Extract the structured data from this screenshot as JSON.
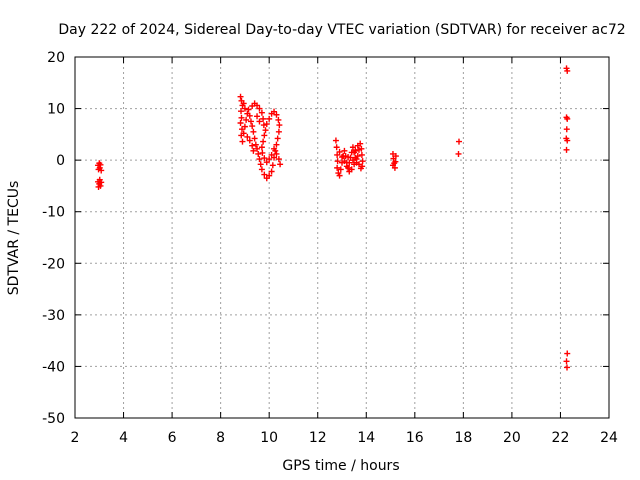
{
  "chart_data": {
    "type": "scatter",
    "title": "Day 222 of 2024, Sidereal Day-to-day VTEC variation (SDTVAR) for receiver ac72",
    "xlabel": "GPS time / hours",
    "ylabel": "SDTVAR / TECUs",
    "xlim": [
      2,
      24
    ],
    "ylim": [
      -50,
      20
    ],
    "xticks": [
      2,
      4,
      6,
      8,
      10,
      12,
      14,
      16,
      18,
      20,
      22,
      24
    ],
    "yticks": [
      -50,
      -40,
      -30,
      -20,
      -10,
      0,
      10,
      20
    ],
    "grid": true,
    "marker": "+",
    "series": [
      {
        "name": "ac72",
        "color": "#ff0000",
        "points": [
          [
            2.95,
            -1.0
          ],
          [
            2.97,
            -1.8
          ],
          [
            3.0,
            -0.6
          ],
          [
            3.02,
            -1.5
          ],
          [
            3.05,
            -0.9
          ],
          [
            3.08,
            -2.0
          ],
          [
            2.95,
            -4.2
          ],
          [
            2.97,
            -5.2
          ],
          [
            3.0,
            -4.6
          ],
          [
            3.02,
            -3.8
          ],
          [
            3.05,
            -5.0
          ],
          [
            3.08,
            -4.3
          ],
          [
            8.82,
            12.3
          ],
          [
            8.86,
            11.5
          ],
          [
            8.9,
            10.6
          ],
          [
            8.84,
            9.5
          ],
          [
            8.86,
            8.2
          ],
          [
            8.82,
            7.2
          ],
          [
            8.88,
            6.0
          ],
          [
            8.85,
            4.8
          ],
          [
            8.9,
            3.6
          ],
          [
            8.95,
            5.2
          ],
          [
            9.0,
            6.5
          ],
          [
            9.05,
            7.8
          ],
          [
            9.1,
            9.0
          ],
          [
            9.15,
            9.8
          ],
          [
            9.2,
            8.6
          ],
          [
            9.25,
            7.5
          ],
          [
            9.3,
            6.6
          ],
          [
            9.35,
            5.5
          ],
          [
            9.4,
            4.2
          ],
          [
            9.45,
            3.0
          ],
          [
            9.5,
            2.2
          ],
          [
            9.55,
            1.2
          ],
          [
            9.6,
            0.2
          ],
          [
            9.65,
            -0.8
          ],
          [
            9.7,
            -1.8
          ],
          [
            9.8,
            -2.8
          ],
          [
            9.9,
            -3.5
          ],
          [
            10.0,
            -3.0
          ],
          [
            10.1,
            -2.2
          ],
          [
            10.15,
            -1.0
          ],
          [
            10.2,
            0.5
          ],
          [
            10.25,
            1.8
          ],
          [
            10.3,
            3.0
          ],
          [
            10.35,
            4.2
          ],
          [
            10.4,
            5.5
          ],
          [
            10.42,
            6.8
          ],
          [
            10.38,
            7.8
          ],
          [
            10.3,
            8.8
          ],
          [
            10.2,
            9.4
          ],
          [
            10.1,
            9.0
          ],
          [
            10.0,
            8.0
          ],
          [
            9.9,
            7.0
          ],
          [
            9.85,
            5.8
          ],
          [
            9.8,
            4.8
          ],
          [
            9.75,
            3.6
          ],
          [
            9.7,
            2.5
          ],
          [
            9.72,
            1.4
          ],
          [
            9.8,
            0.4
          ],
          [
            9.9,
            -0.4
          ],
          [
            10.0,
            0.2
          ],
          [
            10.1,
            1.0
          ],
          [
            10.2,
            2.2
          ],
          [
            10.3,
            1.2
          ],
          [
            10.4,
            0.2
          ],
          [
            10.45,
            -0.8
          ],
          [
            9.3,
            10.5
          ],
          [
            9.4,
            11.0
          ],
          [
            9.5,
            10.6
          ],
          [
            9.6,
            10.0
          ],
          [
            9.7,
            9.2
          ],
          [
            9.75,
            8.0
          ],
          [
            9.78,
            6.8
          ],
          [
            9.6,
            7.5
          ],
          [
            9.5,
            8.5
          ],
          [
            9.0,
            10.0
          ],
          [
            8.95,
            11.0
          ],
          [
            9.1,
            4.5
          ],
          [
            9.2,
            3.8
          ],
          [
            9.3,
            2.8
          ],
          [
            9.35,
            1.8
          ],
          [
            12.75,
            3.8
          ],
          [
            12.78,
            2.5
          ],
          [
            12.8,
            1.0
          ],
          [
            12.82,
            -0.2
          ],
          [
            12.8,
            -1.5
          ],
          [
            12.85,
            -2.5
          ],
          [
            12.9,
            -3.0
          ],
          [
            12.95,
            -1.8
          ],
          [
            13.0,
            -0.5
          ],
          [
            13.05,
            0.8
          ],
          [
            13.1,
            1.8
          ],
          [
            13.15,
            0.8
          ],
          [
            13.2,
            -0.5
          ],
          [
            13.25,
            -1.5
          ],
          [
            13.3,
            -0.5
          ],
          [
            13.35,
            0.5
          ],
          [
            13.4,
            1.5
          ],
          [
            13.45,
            2.5
          ],
          [
            13.5,
            1.5
          ],
          [
            13.55,
            0.5
          ],
          [
            13.6,
            -0.5
          ],
          [
            13.65,
            0.8
          ],
          [
            13.7,
            2.0
          ],
          [
            13.75,
            3.2
          ],
          [
            13.8,
            2.2
          ],
          [
            13.82,
            1.0
          ],
          [
            13.85,
            -0.2
          ],
          [
            13.83,
            -1.2
          ],
          [
            13.78,
            -1.6
          ],
          [
            13.7,
            -0.8
          ],
          [
            13.6,
            0.2
          ],
          [
            13.5,
            -0.8
          ],
          [
            13.4,
            -1.8
          ],
          [
            13.3,
            -2.2
          ],
          [
            13.2,
            -1.2
          ],
          [
            13.1,
            -0.2
          ],
          [
            13.0,
            0.6
          ],
          [
            12.9,
            1.6
          ],
          [
            13.45,
            0.0
          ],
          [
            13.55,
            1.8
          ],
          [
            13.65,
            2.8
          ],
          [
            13.25,
            0.6
          ],
          [
            15.1,
            1.2
          ],
          [
            15.12,
            0.3
          ],
          [
            15.15,
            -0.6
          ],
          [
            15.18,
            -1.5
          ],
          [
            15.2,
            -0.3
          ],
          [
            15.22,
            0.8
          ],
          [
            15.1,
            -1.0
          ],
          [
            17.82,
            3.6
          ],
          [
            17.8,
            1.2
          ],
          [
            22.25,
            17.8
          ],
          [
            22.28,
            17.3
          ],
          [
            22.25,
            8.3
          ],
          [
            22.28,
            8.0
          ],
          [
            22.26,
            6.0
          ],
          [
            22.24,
            4.2
          ],
          [
            22.28,
            3.8
          ],
          [
            22.25,
            2.0
          ],
          [
            22.28,
            -37.5
          ],
          [
            22.25,
            -39.0
          ],
          [
            22.27,
            -40.2
          ]
        ]
      }
    ]
  }
}
